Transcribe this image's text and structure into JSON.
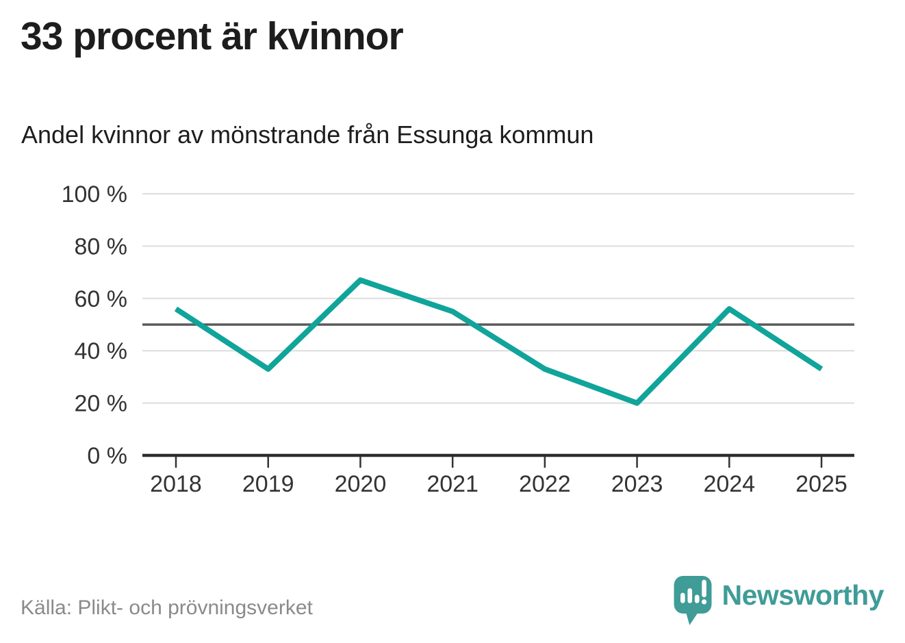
{
  "page": {
    "headline": "33 procent är kvinnor",
    "source": "Källa: Plikt- och prövningsverket",
    "background": "#ffffff",
    "text_color": "#1d1d1d",
    "muted_color": "#8a8a8a"
  },
  "brand": {
    "name": "Newsworthy",
    "color": "#3f9c97"
  },
  "chart_data": {
    "type": "line",
    "title": "Andel kvinnor av mönstrande från Essunga kommun",
    "x": [
      "2018",
      "2019",
      "2020",
      "2021",
      "2022",
      "2023",
      "2024",
      "2025"
    ],
    "series": [
      {
        "name": "Andel kvinnor av mönstrande",
        "values": [
          56,
          33,
          67,
          55,
          33,
          20,
          56,
          33
        ]
      }
    ],
    "unit": "%",
    "ylim": [
      0,
      100
    ],
    "yticks": [
      0,
      20,
      40,
      60,
      80,
      100
    ],
    "ytick_suffix": " %",
    "reference_line": 50,
    "grid": true,
    "legend": "none",
    "line_color": "#10a49a",
    "grid_color": "#dddddd",
    "reference_color": "#5a5a5a",
    "axis_color": "#2d2d2d",
    "tick_label_color": "#333333"
  }
}
